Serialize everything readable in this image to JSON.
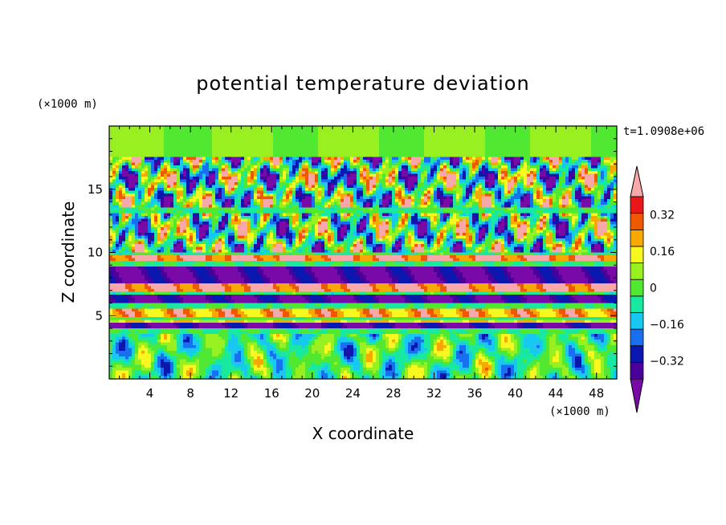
{
  "chart_data": {
    "type": "heatmap",
    "title": "potential temperature deviation",
    "xlabel": "X coordinate",
    "ylabel": "Z coordinate",
    "x_unit": "(×1000 m)",
    "y_unit": "(×1000 m)",
    "time_label": "t=1.0908e+06",
    "xlim": [
      0,
      50
    ],
    "ylim": [
      0,
      20
    ],
    "x_ticks": [
      4,
      8,
      12,
      16,
      20,
      24,
      28,
      32,
      36,
      40,
      44,
      48
    ],
    "y_ticks": [
      5,
      10,
      15
    ],
    "colorbar": {
      "levels": [
        -0.4,
        -0.32,
        -0.24,
        -0.16,
        -0.08,
        0,
        0.08,
        0.16,
        0.24,
        0.32,
        0.4
      ],
      "tick_labels": [
        "0.32",
        "0.16",
        "0",
        "−0.16",
        "−0.32"
      ],
      "tick_values": [
        0.32,
        0.16,
        0,
        -0.16,
        -0.32
      ],
      "colors": [
        "#7a0aa8",
        "#4a009a",
        "#0a18b0",
        "#1870f0",
        "#18c8f0",
        "#18e8a0",
        "#50e830",
        "#98f020",
        "#f8f820",
        "#f8a800",
        "#f05800",
        "#e81818",
        "#f8a8a8"
      ]
    },
    "bands": [
      {
        "z_center": 15.5,
        "z_halfwidth": 2.0,
        "pattern": "mixed"
      },
      {
        "z_center": 11.5,
        "z_halfwidth": 1.5,
        "pattern": "mixed"
      },
      {
        "z_center": 9.6,
        "z_halfwidth": 0.2,
        "value": 0.4
      },
      {
        "z_center": 8.2,
        "z_halfwidth": 0.6,
        "value": -0.4
      },
      {
        "z_center": 7.2,
        "z_halfwidth": 0.4,
        "value": 0.4
      },
      {
        "z_center": 6.3,
        "z_halfwidth": 0.4,
        "value": -0.4
      },
      {
        "z_center": 5.3,
        "z_halfwidth": 0.3,
        "value": 0.3
      },
      {
        "z_center": 4.6,
        "z_halfwidth": 0.15,
        "value": 0.2
      },
      {
        "z_center": 4.2,
        "z_halfwidth": 0.25,
        "value": -0.4
      },
      {
        "z_center": 1.8,
        "z_halfwidth": 1.8,
        "pattern": "waves"
      }
    ]
  },
  "colors": {
    "axis": "#000000",
    "background": "#ffffff"
  }
}
